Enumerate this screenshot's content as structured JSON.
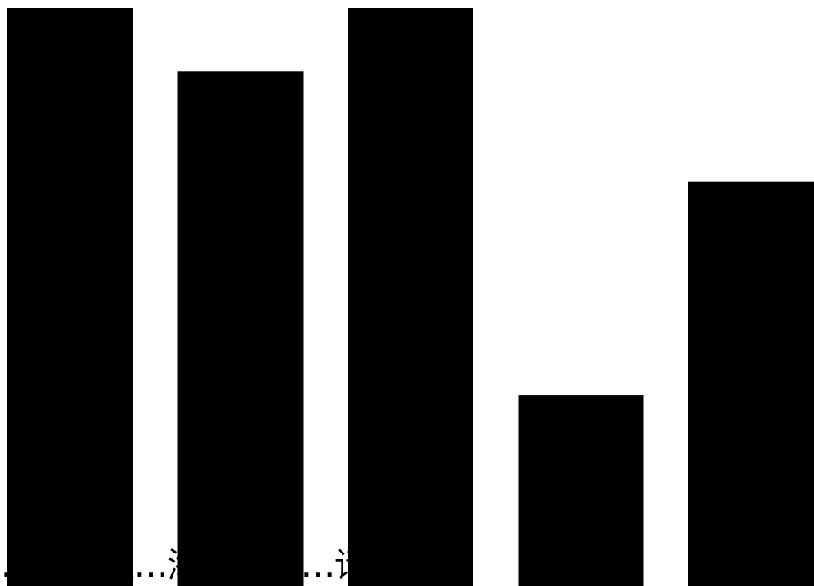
{
  "caption_text": "…家的眼…添加整理…请…权",
  "chart_data": {
    "type": "bar",
    "categories": [
      "",
      "",
      "",
      "",
      ""
    ],
    "values": [
      100,
      89,
      100,
      33,
      70
    ],
    "ylim": [
      0,
      100
    ],
    "title": "",
    "xlabel": "",
    "ylabel": "",
    "grid": false,
    "legend": "none",
    "bar_color": "#000000",
    "background_color": "#ffffff"
  }
}
